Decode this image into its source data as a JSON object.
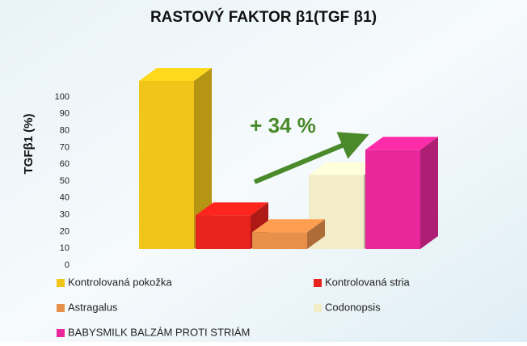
{
  "chart_data": {
    "type": "bar3d",
    "title": "RASTOVÝ FAKTOR β1(TGF β1)",
    "y_label": "TGFβ1 (%)",
    "annotation": "+ 34 %",
    "ylim": [
      0,
      100
    ],
    "yticks": [
      0,
      10,
      20,
      30,
      40,
      50,
      60,
      70,
      80,
      90,
      100
    ],
    "series": [
      {
        "name": "Kontrolovaná pokožka",
        "color": "#f2c51a",
        "values": [
          100
        ]
      },
      {
        "name": "Kontrolovaná stria",
        "color": "#e8221c",
        "values": [
          20
        ]
      },
      {
        "name": "Astragalus",
        "color": "#e8904a",
        "values": [
          10
        ]
      },
      {
        "name": "Codonopsis",
        "color": "#f3ecc8",
        "values": [
          44
        ]
      },
      {
        "name": "BABYSMILK BALZÁM PROTI STRIÁM",
        "color": "#e8289a",
        "values": [
          59
        ]
      }
    ]
  }
}
